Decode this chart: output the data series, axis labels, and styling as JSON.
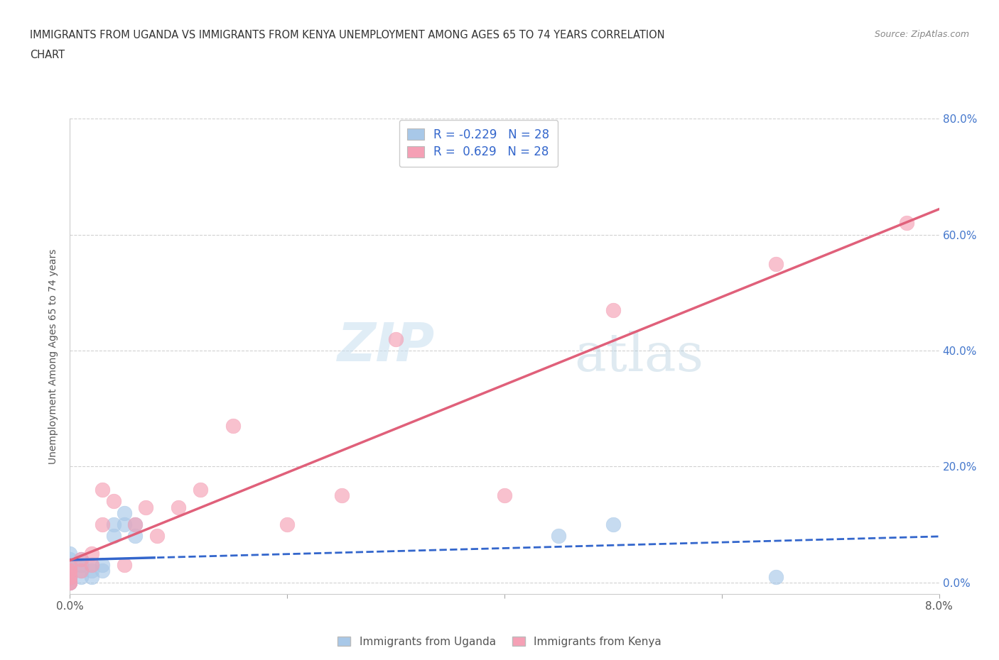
{
  "title_line1": "IMMIGRANTS FROM UGANDA VS IMMIGRANTS FROM KENYA UNEMPLOYMENT AMONG AGES 65 TO 74 YEARS CORRELATION",
  "title_line2": "CHART",
  "source": "Source: ZipAtlas.com",
  "ylabel": "Unemployment Among Ages 65 to 74 years",
  "xlim": [
    0.0,
    0.08
  ],
  "ylim": [
    -0.02,
    0.8
  ],
  "yticks": [
    0.0,
    0.2,
    0.4,
    0.6,
    0.8
  ],
  "right_ytick_labels": [
    "80.0%",
    "60.0%",
    "40.0%",
    "20.0%",
    "0.0%"
  ],
  "right_yticks": [
    0.8,
    0.6,
    0.4,
    0.2,
    0.0
  ],
  "xticks_bottom": [
    0.0,
    0.02,
    0.04,
    0.06,
    0.08
  ],
  "xtick_labels_bottom": [
    "0.0%",
    "",
    "",
    "",
    "8.0%"
  ],
  "uganda_color": "#a8c8e8",
  "kenya_color": "#f5a0b5",
  "uganda_line_color": "#3366cc",
  "kenya_line_color": "#e0607a",
  "r_uganda": -0.229,
  "r_kenya": 0.629,
  "n": 28,
  "watermark_zip": "ZIP",
  "watermark_atlas": "atlas",
  "legend_label_uganda": "Immigrants from Uganda",
  "legend_label_kenya": "Immigrants from Kenya",
  "uganda_x": [
    0.0,
    0.0,
    0.0,
    0.0,
    0.0,
    0.0,
    0.0,
    0.0,
    0.0,
    0.0,
    0.001,
    0.001,
    0.001,
    0.001,
    0.002,
    0.002,
    0.002,
    0.003,
    0.003,
    0.004,
    0.004,
    0.005,
    0.005,
    0.006,
    0.006,
    0.045,
    0.05,
    0.065
  ],
  "uganda_y": [
    0.0,
    0.0,
    0.01,
    0.01,
    0.02,
    0.02,
    0.03,
    0.03,
    0.04,
    0.05,
    0.01,
    0.02,
    0.03,
    0.04,
    0.01,
    0.02,
    0.03,
    0.02,
    0.03,
    0.08,
    0.1,
    0.1,
    0.12,
    0.08,
    0.1,
    0.08,
    0.1,
    0.01
  ],
  "kenya_x": [
    0.0,
    0.0,
    0.0,
    0.0,
    0.0,
    0.0,
    0.0,
    0.001,
    0.001,
    0.002,
    0.002,
    0.003,
    0.003,
    0.004,
    0.005,
    0.006,
    0.007,
    0.008,
    0.01,
    0.012,
    0.015,
    0.02,
    0.025,
    0.03,
    0.04,
    0.05,
    0.065,
    0.077
  ],
  "kenya_y": [
    0.0,
    0.0,
    0.01,
    0.01,
    0.02,
    0.02,
    0.03,
    0.02,
    0.04,
    0.03,
    0.05,
    0.1,
    0.16,
    0.14,
    0.03,
    0.1,
    0.13,
    0.08,
    0.13,
    0.16,
    0.27,
    0.1,
    0.15,
    0.42,
    0.15,
    0.47,
    0.55,
    0.62
  ],
  "background_color": "#ffffff",
  "grid_color": "#cccccc",
  "title_color": "#333333",
  "axis_label_color": "#555555",
  "tick_color": "#555555",
  "legend_text_color": "#3366cc"
}
